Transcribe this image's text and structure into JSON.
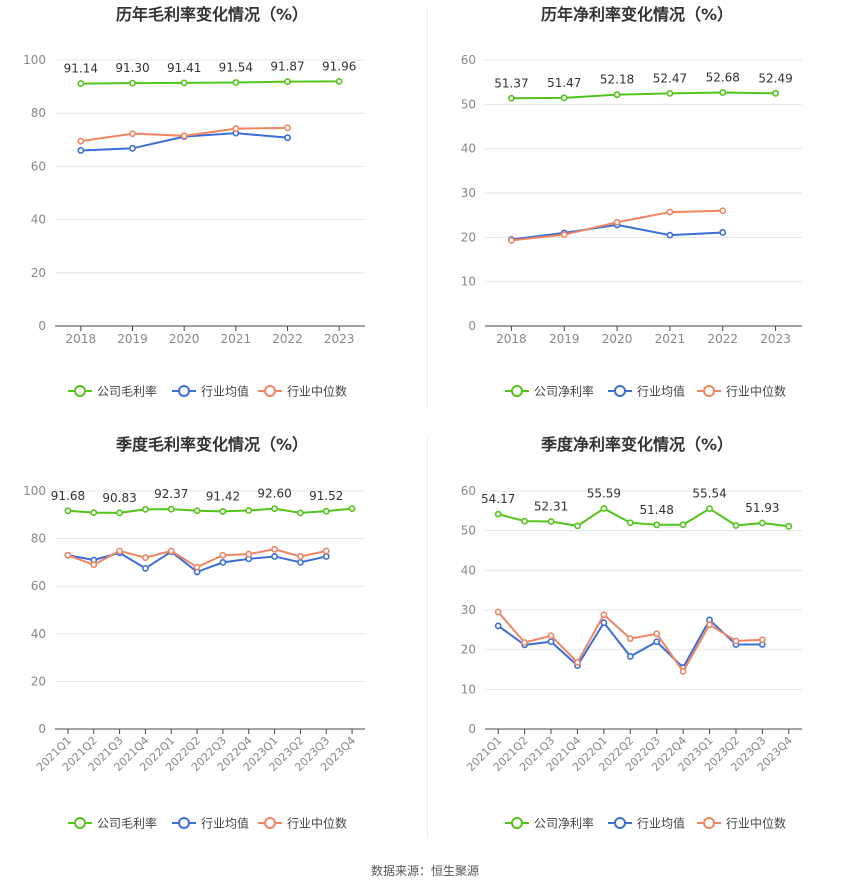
{
  "source_text": "数据来源：恒生聚源",
  "colors": {
    "company": "#52c41a",
    "industry_avg": "#3b6fd6",
    "industry_median": "#f08562"
  },
  "legend_company_gross": "公司毛利率",
  "legend_company_net": "公司净利率",
  "legend_industry_avg": "行业均值",
  "legend_industry_median": "行业中位数",
  "chart_data": [
    {
      "type": "line",
      "title": "历年毛利率变化情况（%）",
      "categories": [
        "2018",
        "2019",
        "2020",
        "2021",
        "2022",
        "2023"
      ],
      "ylim": [
        0,
        100
      ],
      "yticks": [
        0,
        20,
        40,
        60,
        80,
        100
      ],
      "grid": true,
      "legend": "bottom",
      "series": [
        {
          "name": "公司毛利率",
          "color": "#52c41a",
          "values": [
            91.14,
            91.3,
            91.41,
            91.54,
            91.87,
            91.96
          ],
          "labels": [
            "91.14",
            "91.30",
            "91.41",
            "91.54",
            "91.87",
            "91.96"
          ]
        },
        {
          "name": "行业均值",
          "color": "#3b6fd6",
          "values": [
            66.0,
            66.8,
            71.2,
            72.5,
            70.8,
            null
          ]
        },
        {
          "name": "行业中位数",
          "color": "#f08562",
          "values": [
            69.5,
            72.3,
            71.5,
            74.2,
            74.5,
            null
          ]
        }
      ]
    },
    {
      "type": "line",
      "title": "历年净利率变化情况（%）",
      "categories": [
        "2018",
        "2019",
        "2020",
        "2021",
        "2022",
        "2023"
      ],
      "ylim": [
        0,
        60
      ],
      "yticks": [
        0,
        10,
        20,
        30,
        40,
        50,
        60
      ],
      "grid": true,
      "legend": "bottom",
      "series": [
        {
          "name": "公司净利率",
          "color": "#52c41a",
          "values": [
            51.37,
            51.47,
            52.18,
            52.47,
            52.68,
            52.49
          ],
          "labels": [
            "51.37",
            "51.47",
            "52.18",
            "52.47",
            "52.68",
            "52.49"
          ]
        },
        {
          "name": "行业均值",
          "color": "#3b6fd6",
          "values": [
            19.5,
            21.0,
            22.8,
            20.5,
            21.1,
            null
          ]
        },
        {
          "name": "行业中位数",
          "color": "#f08562",
          "values": [
            19.3,
            20.6,
            23.4,
            25.7,
            26.0,
            null
          ]
        }
      ]
    },
    {
      "type": "line",
      "title": "季度毛利率变化情况（%）",
      "categories": [
        "2021Q1",
        "2021Q2",
        "2021Q3",
        "2021Q4",
        "2022Q1",
        "2022Q2",
        "2022Q3",
        "2022Q4",
        "2023Q1",
        "2023Q2",
        "2023Q3",
        "2023Q4"
      ],
      "ylim": [
        0,
        100
      ],
      "yticks": [
        0,
        20,
        40,
        60,
        80,
        100
      ],
      "grid": true,
      "legend": "bottom",
      "series": [
        {
          "name": "公司毛利率",
          "color": "#52c41a",
          "values": [
            91.68,
            90.9,
            90.83,
            92.3,
            92.37,
            91.7,
            91.42,
            91.8,
            92.6,
            90.8,
            91.52,
            92.6
          ],
          "labels": [
            "91.68",
            "",
            "90.83",
            "",
            "92.37",
            "",
            "91.42",
            "",
            "92.60",
            "",
            "91.52",
            ""
          ]
        },
        {
          "name": "行业均值",
          "color": "#3b6fd6",
          "values": [
            73.0,
            71.0,
            74.0,
            67.5,
            74.5,
            66.0,
            70.0,
            71.5,
            72.5,
            70.0,
            72.5,
            null
          ]
        },
        {
          "name": "行业中位数",
          "color": "#f08562",
          "values": [
            73.0,
            69.0,
            74.8,
            72.0,
            74.8,
            68.0,
            73.0,
            73.5,
            75.5,
            72.5,
            74.8,
            null
          ]
        }
      ]
    },
    {
      "type": "line",
      "title": "季度净利率变化情况（%）",
      "categories": [
        "2021Q1",
        "2021Q2",
        "2021Q3",
        "2021Q4",
        "2022Q1",
        "2022Q2",
        "2022Q3",
        "2022Q4",
        "2023Q1",
        "2023Q2",
        "2023Q3",
        "2023Q4"
      ],
      "ylim": [
        0,
        60
      ],
      "yticks": [
        0,
        10,
        20,
        30,
        40,
        50,
        60
      ],
      "grid": true,
      "legend": "bottom",
      "series": [
        {
          "name": "公司净利率",
          "color": "#52c41a",
          "values": [
            54.17,
            52.4,
            52.31,
            51.2,
            55.59,
            52.0,
            51.48,
            51.5,
            55.54,
            51.3,
            51.93,
            51.1
          ],
          "labels": [
            "54.17",
            "",
            "52.31",
            "",
            "55.59",
            "",
            "51.48",
            "",
            "55.54",
            "",
            "51.93",
            ""
          ]
        },
        {
          "name": "行业均值",
          "color": "#3b6fd6",
          "values": [
            26.0,
            21.2,
            22.0,
            16.0,
            26.8,
            18.3,
            22.0,
            15.5,
            27.5,
            21.3,
            21.3,
            null
          ]
        },
        {
          "name": "行业中位数",
          "color": "#f08562",
          "values": [
            29.5,
            21.8,
            23.5,
            16.8,
            28.8,
            22.8,
            24.0,
            14.5,
            26.3,
            22.2,
            22.5,
            null
          ]
        }
      ]
    }
  ]
}
